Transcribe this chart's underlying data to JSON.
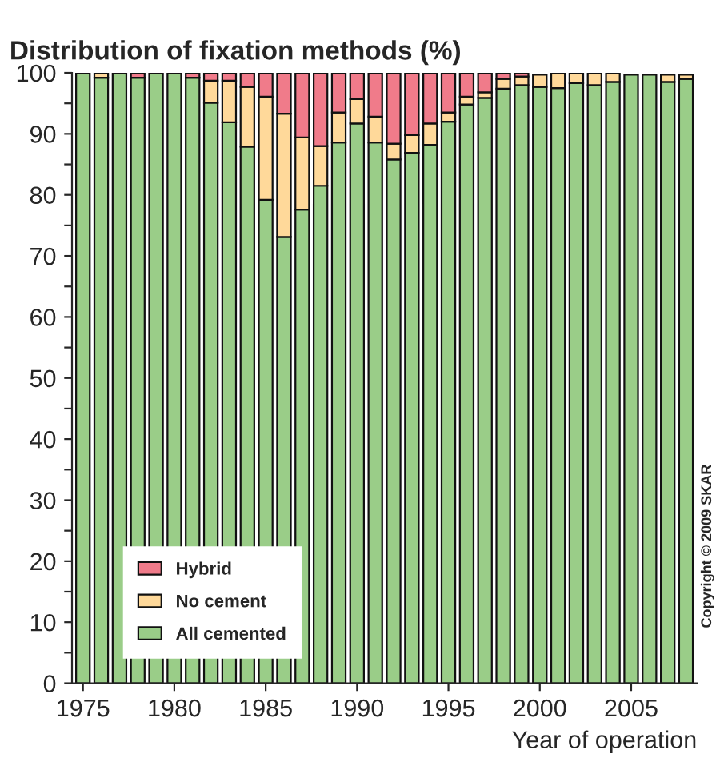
{
  "chart_data": {
    "type": "bar",
    "stacked": true,
    "title": "Distribution of fixation methods (%)",
    "xlabel": "Year of operation",
    "x": [
      1975,
      1976,
      1977,
      1978,
      1979,
      1980,
      1981,
      1982,
      1983,
      1984,
      1985,
      1986,
      1987,
      1988,
      1989,
      1990,
      1991,
      1992,
      1993,
      1994,
      1995,
      1996,
      1997,
      1998,
      1999,
      2000,
      2001,
      2002,
      2003,
      2004,
      2005,
      2006,
      2007,
      2008
    ],
    "series": [
      {
        "name": "All cemented",
        "color": "#9acd88",
        "values": [
          100,
          99.2,
          100,
          99.2,
          100,
          100,
          99.2,
          95.1,
          91.9,
          87.9,
          79.2,
          73.1,
          77.6,
          81.5,
          88.6,
          91.7,
          88.6,
          85.8,
          86.9,
          88.2,
          92.0,
          94.8,
          95.9,
          97.4,
          98.0,
          97.7,
          97.5,
          98.3,
          98.0,
          98.5,
          99.7,
          99.7,
          98.5,
          99.0
        ]
      },
      {
        "name": "No cement",
        "color": "#ffd99a",
        "values": [
          0,
          0.8,
          0,
          0,
          0,
          0,
          0,
          3.6,
          6.8,
          9.8,
          16.9,
          20.2,
          11.8,
          6.5,
          4.9,
          4.0,
          4.2,
          2.6,
          2.9,
          3.5,
          1.5,
          1.3,
          0.9,
          1.6,
          1.4,
          2.0,
          2.5,
          1.7,
          2.0,
          1.5,
          null,
          null,
          1.2,
          0.7
        ]
      },
      {
        "name": "Hybrid",
        "color": "#f07b8a",
        "values": [
          0,
          0,
          0,
          0.8,
          0,
          0,
          0.8,
          1.3,
          1.3,
          2.3,
          3.9,
          6.7,
          10.6,
          12.0,
          6.5,
          4.3,
          7.2,
          11.6,
          10.2,
          8.3,
          6.5,
          3.9,
          3.2,
          1.0,
          0.6,
          null,
          0,
          0,
          0,
          0,
          0,
          0,
          null,
          null
        ]
      }
    ],
    "xlim": [
      1974.4,
      2008.6
    ],
    "xticks": [
      1975,
      1980,
      1985,
      1990,
      1995,
      2000,
      2005
    ],
    "ylim": [
      0,
      100
    ],
    "yticks": [
      0,
      {
        "value": 5,
        "label": null
      },
      10,
      {
        "value": 15,
        "label": null
      },
      20,
      {
        "value": 25,
        "label": null
      },
      30,
      {
        "value": 35,
        "label": null
      },
      40,
      {
        "value": 45,
        "label": null
      },
      50,
      {
        "value": 55,
        "label": null
      },
      60,
      {
        "value": 65,
        "label": null
      },
      70,
      {
        "value": 75,
        "label": null
      },
      80,
      {
        "value": 85,
        "label": null
      },
      90,
      {
        "value": 95,
        "label": null
      },
      100
    ],
    "legend": "bottom left",
    "grid": false,
    "annotations": [
      "Copyright © 2009 SKAR"
    ]
  }
}
